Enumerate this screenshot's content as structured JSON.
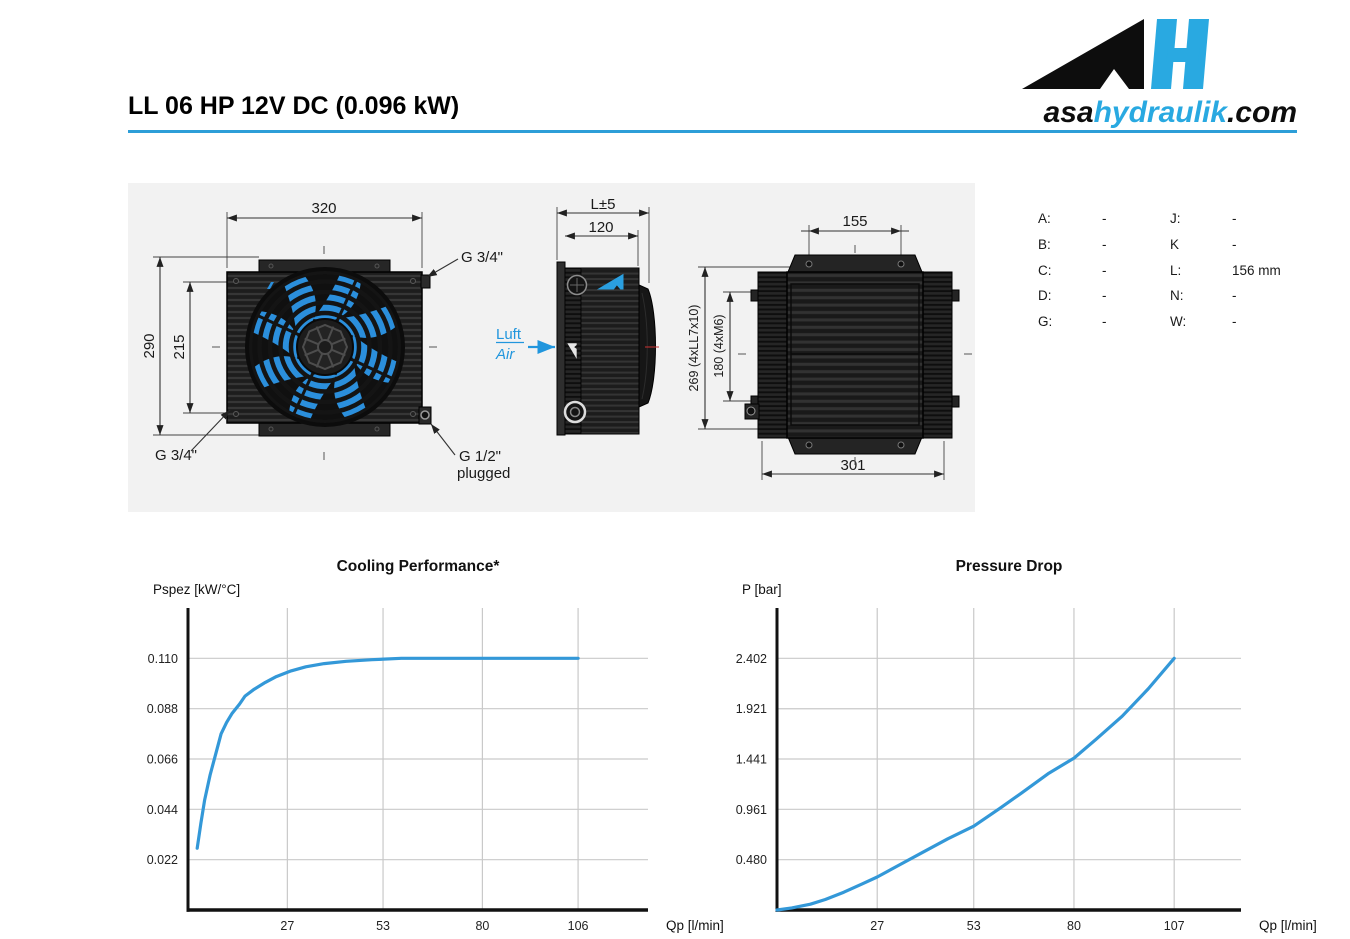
{
  "header": {
    "title": "LL 06 HP 12V DC (0.096 kW)"
  },
  "logo": {
    "asa": "asa",
    "hydraulik": "hydraulik",
    "dotcom": ".com"
  },
  "colors": {
    "accent_blue": "#2d9ed8",
    "logo_blue": "#29a9e1",
    "curve_blue": "#3398d8"
  },
  "drawings": {
    "front": {
      "width": "320",
      "height_outer": "290",
      "height_inner": "215",
      "port_top": "G 3/4\"",
      "port_bottom_left": "G 3/4\"",
      "port_bottom_right": "G 1/2\"",
      "port_bottom_right_note": "plugged"
    },
    "side": {
      "depth_outer": "L±5",
      "depth_inner": "120",
      "air_de": "Luft",
      "air_en": "Air"
    },
    "rear": {
      "hole_spacing_top": "155",
      "height_outer": "269 (4xLL7x10)",
      "height_inner": "180 (4xM6)",
      "width_bottom": "301"
    }
  },
  "spec_table": {
    "rows": [
      {
        "k1": "A:",
        "v1": "-",
        "k2": "J:",
        "v2": "-"
      },
      {
        "k1": "B:",
        "v1": "-",
        "k2": "K",
        "v2": "-"
      },
      {
        "k1": "C:",
        "v1": "-",
        "k2": "L:",
        "v2": "156 mm"
      },
      {
        "k1": "D:",
        "v1": "-",
        "k2": "N:",
        "v2": "-"
      },
      {
        "k1": "G:",
        "v1": "-",
        "k2": "W:",
        "v2": "-"
      }
    ]
  },
  "chart_data": [
    {
      "id": "cooling-performance",
      "type": "line",
      "title": "Cooling Performance*",
      "ylabel": "Pspez [kW/°C]",
      "xlabel": "Qp [l/min]",
      "x_ticks": [
        27,
        53,
        80,
        106
      ],
      "y_ticks": [
        0.022,
        0.044,
        0.066,
        0.088,
        0.11
      ],
      "y_tick_labels": [
        "0.022",
        "0.044",
        "0.066",
        "0.088",
        "0.110"
      ],
      "xlim": [
        0,
        125
      ],
      "ylim": [
        0,
        0.132
      ],
      "grid": true,
      "legend": false,
      "line_color": "#3398d8",
      "points": [
        [
          2.5,
          0.027
        ],
        [
          3.5,
          0.038
        ],
        [
          4.5,
          0.048
        ],
        [
          6,
          0.059
        ],
        [
          7.5,
          0.068
        ],
        [
          9,
          0.077
        ],
        [
          10.5,
          0.082
        ],
        [
          12,
          0.086
        ],
        [
          14,
          0.09
        ],
        [
          15.5,
          0.0935
        ],
        [
          18,
          0.0965
        ],
        [
          21,
          0.0995
        ],
        [
          24,
          0.102
        ],
        [
          28,
          0.1045
        ],
        [
          32,
          0.1063
        ],
        [
          37,
          0.1077
        ],
        [
          43,
          0.1087
        ],
        [
          50,
          0.1094
        ],
        [
          58,
          0.11
        ],
        [
          106,
          0.11
        ]
      ]
    },
    {
      "id": "pressure-drop",
      "type": "line",
      "title": "Pressure Drop",
      "ylabel": "P [bar]",
      "xlabel": "Qp [l/min]",
      "x_ticks": [
        27,
        53,
        80,
        107
      ],
      "y_ticks": [
        0.48,
        0.961,
        1.441,
        1.921,
        2.402
      ],
      "y_tick_labels": [
        "0.480",
        "0.961",
        "1.441",
        "1.921",
        "2.402"
      ],
      "xlim": [
        0,
        125
      ],
      "ylim": [
        0,
        2.8824
      ],
      "grid": true,
      "legend": false,
      "line_color": "#3398d8",
      "points": [
        [
          0,
          0
        ],
        [
          4,
          0.02
        ],
        [
          9,
          0.055
        ],
        [
          13,
          0.1
        ],
        [
          18,
          0.17
        ],
        [
          23,
          0.25
        ],
        [
          27,
          0.315
        ],
        [
          33,
          0.43
        ],
        [
          40,
          0.565
        ],
        [
          46,
          0.68
        ],
        [
          53,
          0.8
        ],
        [
          60,
          0.97
        ],
        [
          66,
          1.12
        ],
        [
          73,
          1.3
        ],
        [
          80,
          1.45
        ],
        [
          86,
          1.63
        ],
        [
          93,
          1.85
        ],
        [
          100,
          2.11
        ],
        [
          107,
          2.402
        ]
      ]
    }
  ]
}
